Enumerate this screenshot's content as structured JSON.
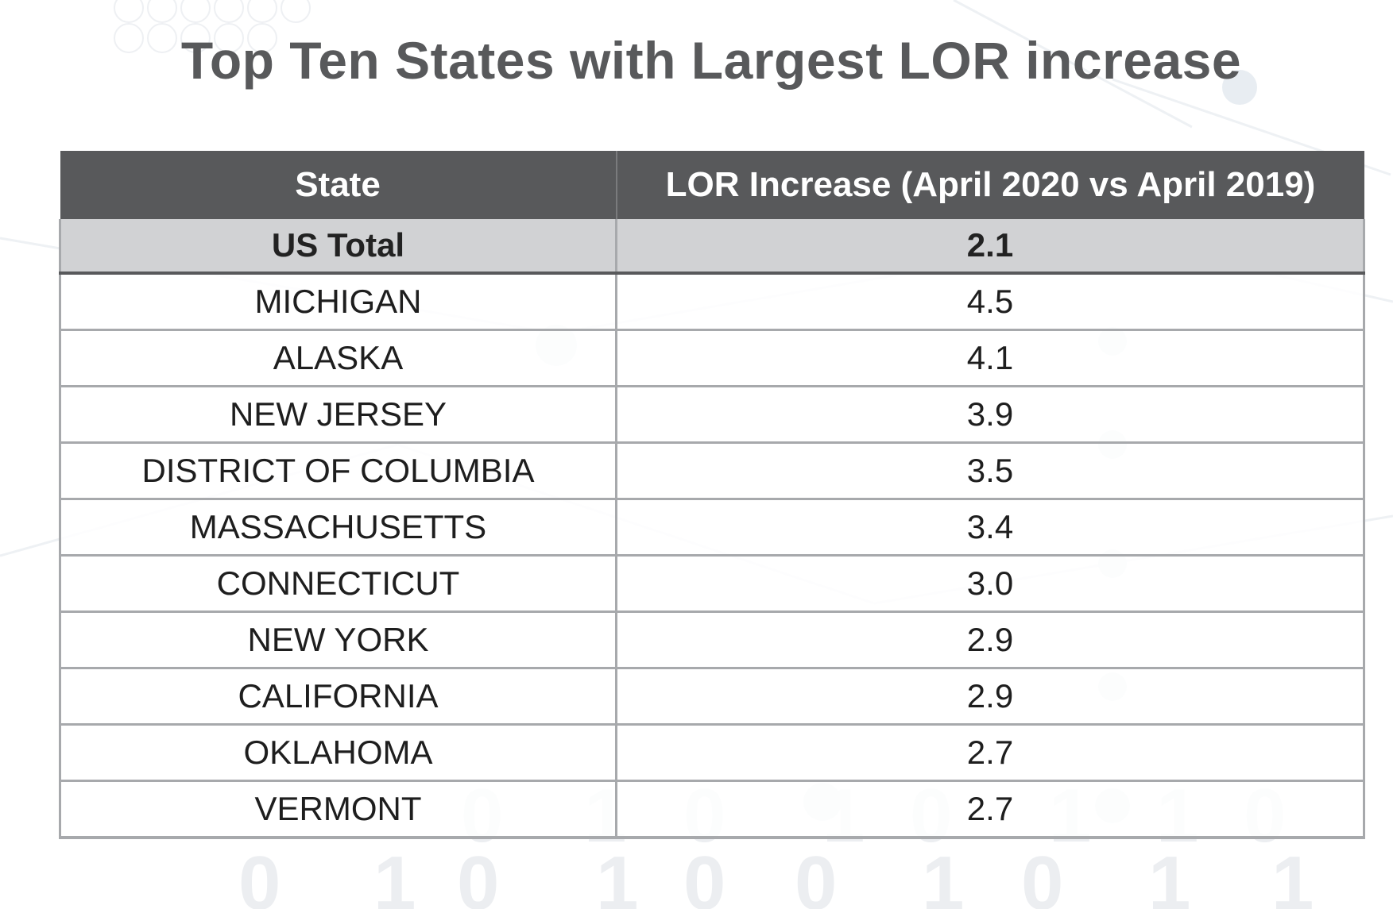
{
  "title": "Top Ten States with Largest LOR increase",
  "table": {
    "headers": [
      "State",
      "LOR Increase (April 2020 vs April 2019)"
    ],
    "total": {
      "state": "US Total",
      "value": "2.1"
    },
    "rows": [
      {
        "state": "MICHIGAN",
        "value": "4.5"
      },
      {
        "state": "ALASKA",
        "value": "4.1"
      },
      {
        "state": "NEW JERSEY",
        "value": "3.9"
      },
      {
        "state": "DISTRICT OF COLUMBIA",
        "value": "3.5"
      },
      {
        "state": "MASSACHUSETTS",
        "value": "3.4"
      },
      {
        "state": "CONNECTICUT",
        "value": "3.0"
      },
      {
        "state": "NEW YORK",
        "value": "2.9"
      },
      {
        "state": "CALIFORNIA",
        "value": "2.9"
      },
      {
        "state": "OKLAHOMA",
        "value": "2.7"
      },
      {
        "state": "VERMONT",
        "value": "2.7"
      }
    ]
  },
  "colors": {
    "header_bg": "#58595b",
    "total_bg": "#d1d2d4",
    "title": "#58595b",
    "grid": "#a7a9ac"
  }
}
